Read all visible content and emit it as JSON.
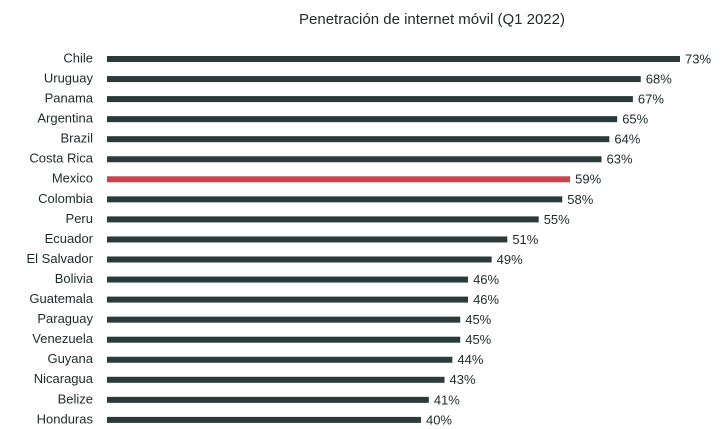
{
  "chart_data": {
    "type": "barh",
    "title": "Penetración de internet móvil (Q1 2022)",
    "categories": [
      "Chile",
      "Uruguay",
      "Panama",
      "Argentina",
      "Brazil",
      "Costa Rica",
      "Mexico",
      "Colombia",
      "Peru",
      "Ecuador",
      "El Salvador",
      "Bolivia",
      "Guatemala",
      "Paraguay",
      "Venezuela",
      "Guyana",
      "Nicaragua",
      "Belize",
      "Honduras"
    ],
    "values": [
      73,
      68,
      67,
      65,
      64,
      63,
      59,
      58,
      55,
      51,
      49,
      46,
      46,
      45,
      45,
      44,
      43,
      41,
      40
    ],
    "value_labels": [
      "73%",
      "68%",
      "67%",
      "65%",
      "64%",
      "63%",
      "59%",
      "58%",
      "55%",
      "51%",
      "49%",
      "46%",
      "46%",
      "45%",
      "45%",
      "44%",
      "43%",
      "41%",
      "40%"
    ],
    "colors": [
      "#2b3a3a",
      "#2b3a3a",
      "#2b3a3a",
      "#2b3a3a",
      "#2b3a3a",
      "#2b3a3a",
      "#c9424c",
      "#2b3a3a",
      "#2b3a3a",
      "#2b3a3a",
      "#2b3a3a",
      "#2b3a3a",
      "#2b3a3a",
      "#2b3a3a",
      "#2b3a3a",
      "#2b3a3a",
      "#2b3a3a",
      "#2b3a3a",
      "#2b3a3a"
    ]
  }
}
